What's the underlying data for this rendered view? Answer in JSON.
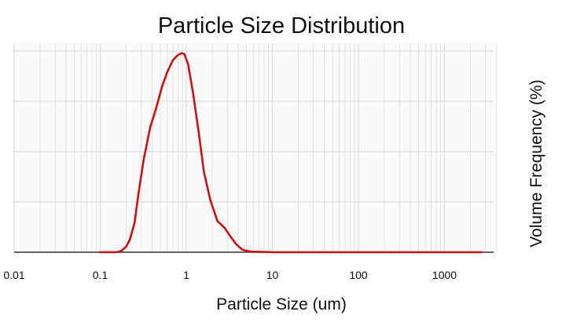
{
  "chart_data": {
    "type": "line",
    "title": "Particle Size Distribution",
    "xlabel": "Particle Size (um)",
    "ylabel": "Volume Frequency (%)",
    "x_scale": "log",
    "xlim": [
      0.01,
      4000
    ],
    "ylim": [
      0,
      10
    ],
    "grid": true,
    "legend": "none",
    "x_ticks": [
      {
        "value": 0.01,
        "label": "0.01"
      },
      {
        "value": 0.1,
        "label": "0.1"
      },
      {
        "value": 1,
        "label": "1"
      },
      {
        "value": 10,
        "label": "10"
      },
      {
        "value": 100,
        "label": "100"
      },
      {
        "value": 1000,
        "label": "1000"
      }
    ],
    "y_gridlines": [
      2.5,
      5,
      7.5,
      10
    ],
    "colors": {
      "line": "#cc1111",
      "grid": "#dddddd",
      "plot_background": "#fafafa",
      "axis": "#333333"
    },
    "series": [
      {
        "x": [
          0.1,
          0.15,
          0.17,
          0.18,
          0.2,
          0.22,
          0.25,
          0.28,
          0.32,
          0.38,
          0.45,
          0.52,
          0.6,
          0.7,
          0.8,
          0.88,
          0.95,
          1.05,
          1.2,
          1.4,
          1.6,
          1.9,
          2.3,
          2.8,
          3.3,
          3.8,
          4.5,
          5.5,
          10,
          100,
          1000,
          2700
        ],
        "y": [
          0,
          0,
          0.03,
          0.1,
          0.28,
          0.6,
          1.45,
          3.0,
          4.6,
          6.2,
          7.2,
          8.2,
          8.95,
          9.55,
          9.8,
          9.9,
          9.85,
          9.35,
          7.9,
          5.9,
          4.0,
          2.6,
          1.55,
          1.2,
          0.75,
          0.4,
          0.12,
          0.03,
          0,
          0,
          0,
          0
        ]
      }
    ]
  }
}
